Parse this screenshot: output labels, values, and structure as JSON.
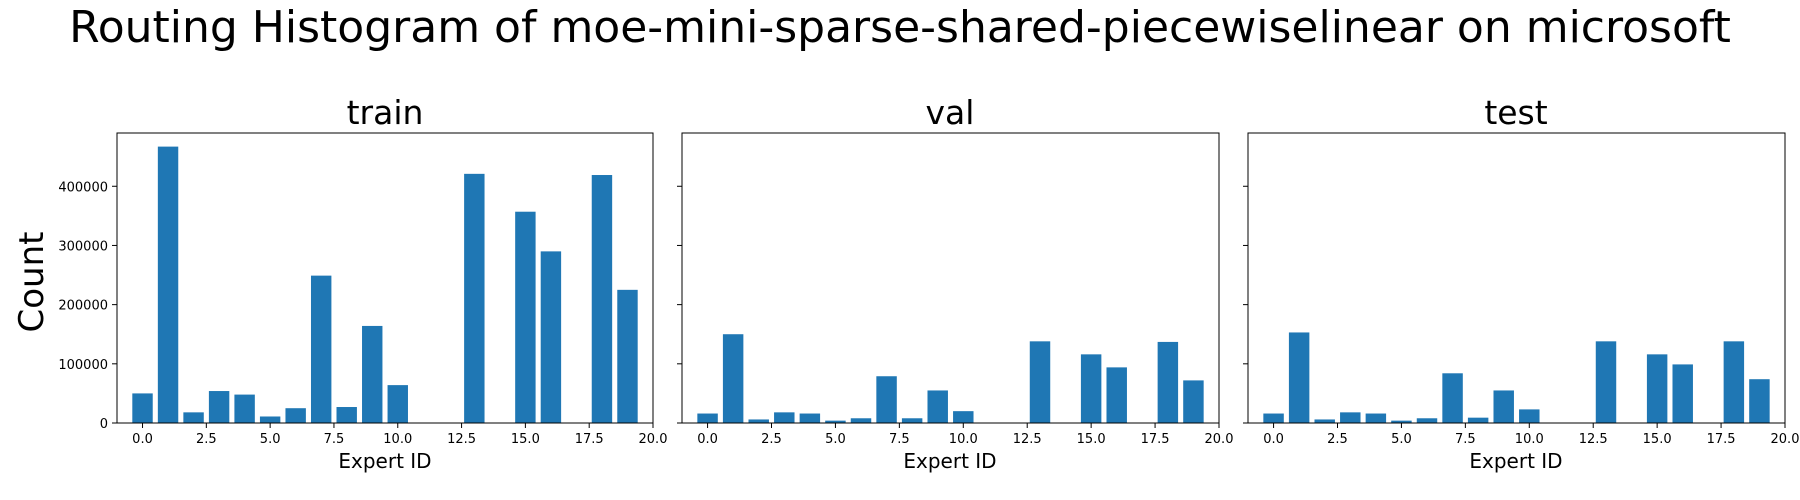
{
  "title": "Routing Histogram of moe-mini-sparse-shared-piecewiselinear on microsoft",
  "ylabel": "Count",
  "bar_color": "#1f77b4",
  "chart_data": [
    {
      "type": "bar",
      "title": "train",
      "xlabel": "Expert ID",
      "ylabel": "Count",
      "x": [
        0,
        1,
        2,
        3,
        4,
        5,
        6,
        7,
        8,
        9,
        10,
        11,
        12,
        13,
        14,
        15,
        16,
        17,
        18,
        19
      ],
      "values": [
        50000,
        467000,
        18000,
        54000,
        48000,
        11000,
        25000,
        249000,
        27000,
        164000,
        64000,
        0,
        0,
        421000,
        0,
        357000,
        290000,
        0,
        419000,
        225000
      ],
      "xlim": [
        -1.0,
        20.0
      ],
      "ylim": [
        0,
        490000
      ],
      "xticks": [
        0.0,
        2.5,
        5.0,
        7.5,
        10.0,
        12.5,
        15.0,
        17.5,
        20.0
      ],
      "xtick_labels": [
        "0.0",
        "2.5",
        "5.0",
        "7.5",
        "10.0",
        "12.5",
        "15.0",
        "17.5",
        "20.0"
      ],
      "yticks": [
        0,
        100000,
        200000,
        300000,
        400000
      ],
      "ytick_labels": [
        "0",
        "100000",
        "200000",
        "300000",
        "400000"
      ],
      "grid": false
    },
    {
      "type": "bar",
      "title": "val",
      "xlabel": "Expert ID",
      "x": [
        0,
        1,
        2,
        3,
        4,
        5,
        6,
        7,
        8,
        9,
        10,
        11,
        12,
        13,
        14,
        15,
        16,
        17,
        18,
        19
      ],
      "values": [
        16000,
        150000,
        6000,
        18000,
        16000,
        4000,
        8000,
        79000,
        8000,
        55000,
        20000,
        0,
        0,
        138000,
        0,
        116000,
        94000,
        0,
        137000,
        72000
      ],
      "xlim": [
        -1.0,
        20.0
      ],
      "ylim": [
        0,
        490000
      ],
      "xticks": [
        0.0,
        2.5,
        5.0,
        7.5,
        10.0,
        12.5,
        15.0,
        17.5,
        20.0
      ],
      "xtick_labels": [
        "0.0",
        "2.5",
        "5.0",
        "7.5",
        "10.0",
        "12.5",
        "15.0",
        "17.5",
        "20.0"
      ],
      "yticks": [
        0,
        100000,
        200000,
        300000,
        400000
      ],
      "grid": false
    },
    {
      "type": "bar",
      "title": "test",
      "xlabel": "Expert ID",
      "x": [
        0,
        1,
        2,
        3,
        4,
        5,
        6,
        7,
        8,
        9,
        10,
        11,
        12,
        13,
        14,
        15,
        16,
        17,
        18,
        19
      ],
      "values": [
        16000,
        153000,
        6000,
        18000,
        16000,
        4000,
        8000,
        84000,
        9000,
        55000,
        23000,
        0,
        0,
        138000,
        0,
        116000,
        99000,
        0,
        138000,
        74000
      ],
      "xlim": [
        -1.0,
        20.0
      ],
      "ylim": [
        0,
        490000
      ],
      "xticks": [
        0.0,
        2.5,
        5.0,
        7.5,
        10.0,
        12.5,
        15.0,
        17.5,
        20.0
      ],
      "xtick_labels": [
        "0.0",
        "2.5",
        "5.0",
        "7.5",
        "10.0",
        "12.5",
        "15.0",
        "17.5",
        "20.0"
      ],
      "yticks": [
        0,
        100000,
        200000,
        300000,
        400000
      ],
      "grid": false
    }
  ]
}
